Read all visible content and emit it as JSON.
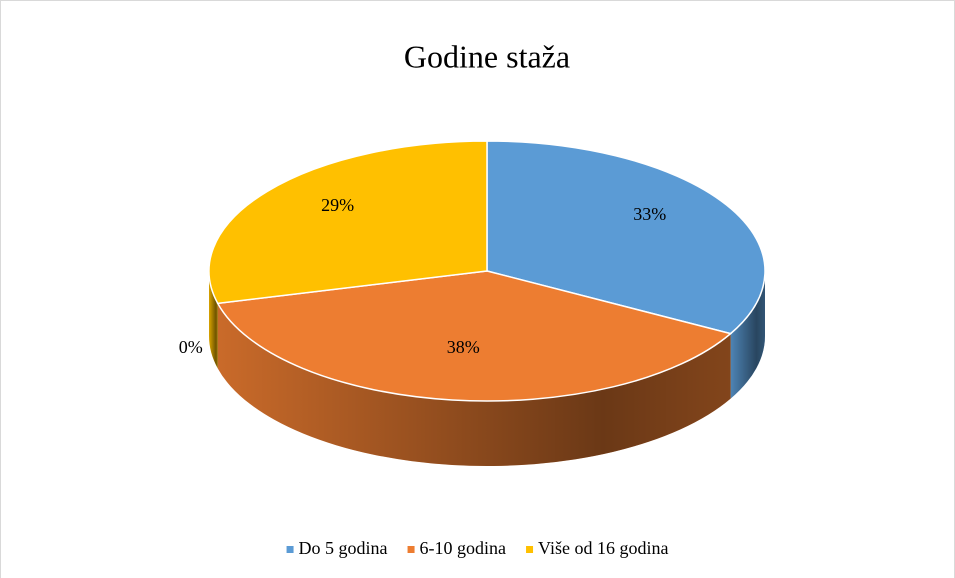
{
  "chart_data": {
    "type": "pie",
    "title": "Godine staža",
    "categories": [
      "Do 5 godina",
      "6-10 godina",
      null,
      "Više od 16 godina"
    ],
    "values": [
      33,
      38,
      0,
      29
    ],
    "value_labels": [
      "33%",
      "38%",
      "0%",
      "29%"
    ],
    "colors": [
      "#5b9bd5",
      "#ed7d31",
      "#a5a5a5",
      "#ffc000"
    ],
    "legend": "bottom"
  }
}
